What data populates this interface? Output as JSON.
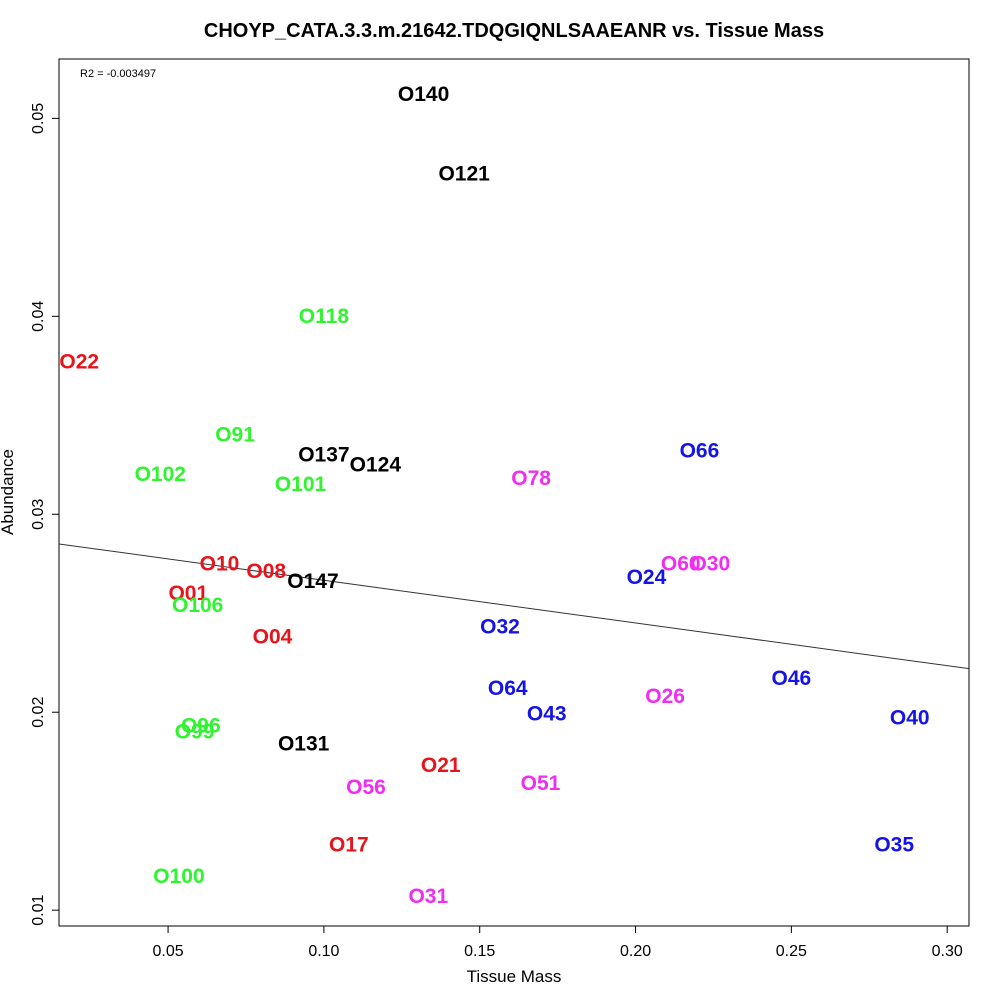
{
  "chart_data": {
    "type": "scatter",
    "title": "CHOYP_CATA.3.3.m.21642.TDQGIQNLSAAEANR vs. Tissue Mass",
    "xlabel": "Tissue Mass",
    "ylabel": "Abundance",
    "xlim": [
      0.015,
      0.307
    ],
    "ylim": [
      0.0092,
      0.053
    ],
    "xticks": [
      0.05,
      0.1,
      0.15,
      0.2,
      0.25,
      0.3
    ],
    "xtick_labels": [
      "0.05",
      "0.10",
      "0.15",
      "0.20",
      "0.25",
      "0.30"
    ],
    "yticks": [
      0.01,
      0.02,
      0.03,
      0.04,
      0.05
    ],
    "ytick_labels": [
      "0.01",
      "0.02",
      "0.03",
      "0.04",
      "0.05"
    ],
    "annotation": "R2 = -0.003497",
    "grid": false,
    "trendline": {
      "x": [
        0.015,
        0.307
      ],
      "y": [
        0.0285,
        0.0222
      ]
    },
    "colors": {
      "red": "#e8141c",
      "green": "#2ef52e",
      "black": "#000000",
      "magenta": "#f02df0",
      "blue": "#1414e6"
    },
    "points": [
      {
        "label": "O140",
        "x": 0.132,
        "y": 0.0512,
        "color": "black"
      },
      {
        "label": "O121",
        "x": 0.145,
        "y": 0.0472,
        "color": "black"
      },
      {
        "label": "O118",
        "x": 0.1,
        "y": 0.04,
        "color": "green"
      },
      {
        "label": "O22",
        "x": 0.0215,
        "y": 0.0377,
        "color": "red"
      },
      {
        "label": "O91",
        "x": 0.0715,
        "y": 0.034,
        "color": "green"
      },
      {
        "label": "O137",
        "x": 0.1,
        "y": 0.033,
        "color": "black"
      },
      {
        "label": "O124",
        "x": 0.1165,
        "y": 0.0325,
        "color": "black"
      },
      {
        "label": "O66",
        "x": 0.2205,
        "y": 0.0332,
        "color": "blue"
      },
      {
        "label": "O102",
        "x": 0.0475,
        "y": 0.032,
        "color": "green"
      },
      {
        "label": "O101",
        "x": 0.0925,
        "y": 0.0315,
        "color": "green"
      },
      {
        "label": "O78",
        "x": 0.1665,
        "y": 0.0318,
        "color": "magenta"
      },
      {
        "label": "O10",
        "x": 0.0665,
        "y": 0.0275,
        "color": "red"
      },
      {
        "label": "O08",
        "x": 0.0815,
        "y": 0.0271,
        "color": "red"
      },
      {
        "label": "O147",
        "x": 0.0965,
        "y": 0.0266,
        "color": "black"
      },
      {
        "label": "O60",
        "x": 0.2145,
        "y": 0.0275,
        "color": "magenta"
      },
      {
        "label": "O30",
        "x": 0.224,
        "y": 0.0275,
        "color": "magenta"
      },
      {
        "label": "O24",
        "x": 0.2035,
        "y": 0.0268,
        "color": "blue"
      },
      {
        "label": "O01",
        "x": 0.0565,
        "y": 0.026,
        "color": "red"
      },
      {
        "label": "O106",
        "x": 0.0595,
        "y": 0.0254,
        "color": "green"
      },
      {
        "label": "O04",
        "x": 0.0835,
        "y": 0.0238,
        "color": "red"
      },
      {
        "label": "O32",
        "x": 0.1565,
        "y": 0.0243,
        "color": "blue"
      },
      {
        "label": "O64",
        "x": 0.159,
        "y": 0.0212,
        "color": "blue"
      },
      {
        "label": "O46",
        "x": 0.25,
        "y": 0.0217,
        "color": "blue"
      },
      {
        "label": "O26",
        "x": 0.2095,
        "y": 0.0208,
        "color": "magenta"
      },
      {
        "label": "O43",
        "x": 0.1715,
        "y": 0.0199,
        "color": "blue"
      },
      {
        "label": "O40",
        "x": 0.288,
        "y": 0.0197,
        "color": "blue"
      },
      {
        "label": "O96",
        "x": 0.0605,
        "y": 0.0193,
        "color": "green"
      },
      {
        "label": "O99",
        "x": 0.0585,
        "y": 0.019,
        "color": "green"
      },
      {
        "label": "O131",
        "x": 0.0935,
        "y": 0.0184,
        "color": "black"
      },
      {
        "label": "O21",
        "x": 0.1375,
        "y": 0.0173,
        "color": "red"
      },
      {
        "label": "O56",
        "x": 0.1135,
        "y": 0.0162,
        "color": "magenta"
      },
      {
        "label": "O51",
        "x": 0.1695,
        "y": 0.0164,
        "color": "magenta"
      },
      {
        "label": "O17",
        "x": 0.108,
        "y": 0.0133,
        "color": "red"
      },
      {
        "label": "O35",
        "x": 0.283,
        "y": 0.0133,
        "color": "blue"
      },
      {
        "label": "O100",
        "x": 0.0535,
        "y": 0.0117,
        "color": "green"
      },
      {
        "label": "O31",
        "x": 0.1335,
        "y": 0.0107,
        "color": "magenta"
      }
    ]
  }
}
